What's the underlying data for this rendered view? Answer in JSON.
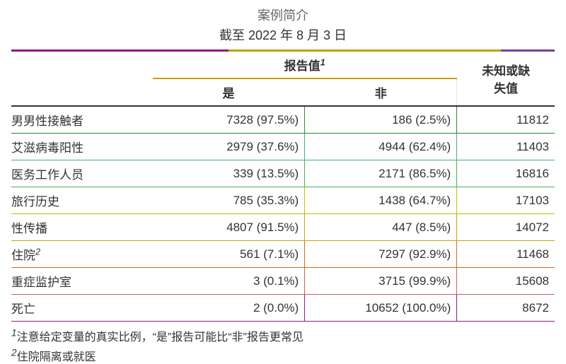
{
  "title": "案例简介",
  "subtitle": "截至 2022 年 8 月 3 日",
  "headers": {
    "reported": "报告值",
    "reported_sup": "1",
    "yes": "是",
    "no": "非",
    "missing_line1": "未知或缺",
    "missing_line2": "失值"
  },
  "rows": [
    {
      "label": "男男性接触者",
      "sup": "",
      "yes": "7328 (97.5%)",
      "no": "186 (2.5%)",
      "missing": "11812"
    },
    {
      "label": "艾滋病毒阳性",
      "sup": "",
      "yes": "2979 (37.6%)",
      "no": "4944 (62.4%)",
      "missing": "11403"
    },
    {
      "label": "医务工作人员",
      "sup": "",
      "yes": "339 (13.5%)",
      "no": "2171 (86.5%)",
      "missing": "16816"
    },
    {
      "label": "旅行历史",
      "sup": "",
      "yes": "785 (35.3%)",
      "no": "1438 (64.7%)",
      "missing": "17103"
    },
    {
      "label": "性传播",
      "sup": "",
      "yes": "4807 (91.5%)",
      "no": "447 (8.5%)",
      "missing": "14072"
    },
    {
      "label": "住院",
      "sup": "2",
      "yes": "561 (7.1%)",
      "no": "7297 (92.9%)",
      "missing": "11468"
    },
    {
      "label": "重症监护室",
      "sup": "",
      "yes": "3 (0.1%)",
      "no": "3715 (99.9%)",
      "missing": "15608"
    },
    {
      "label": "死亡",
      "sup": "",
      "yes": "2 (0.0%)",
      "no": "10652 (100.0%)",
      "missing": "8672"
    }
  ],
  "footnotes": {
    "f1_sup": "1",
    "f1": "注意给定变量的真实比例，“是”报告可能比“非”报告更常见",
    "f2_sup": "2",
    "f2": "住院隔离或就医"
  }
}
